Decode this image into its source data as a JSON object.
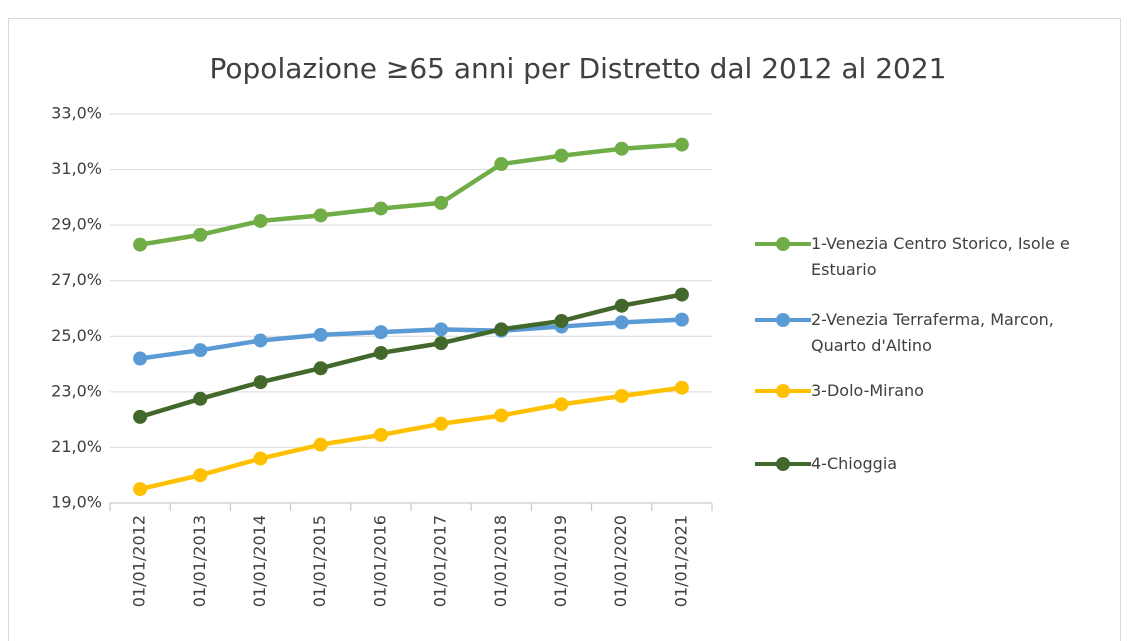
{
  "chart_data": {
    "type": "line",
    "title": "Popolazione ≥65 anni per Distretto dal 2012 al 2021",
    "categories": [
      "01/01/2012",
      "01/01/2013",
      "01/01/2014",
      "01/01/2015",
      "01/01/2016",
      "01/01/2017",
      "01/01/2018",
      "01/01/2019",
      "01/01/2020",
      "01/01/2021"
    ],
    "series": [
      {
        "name": "1-Venezia Centro Storico, Isole e Estuario",
        "color": "#70ad47",
        "values": [
          28.3,
          28.65,
          29.15,
          29.35,
          29.6,
          29.8,
          31.2,
          31.5,
          31.75,
          31.9
        ]
      },
      {
        "name": "2-Venezia Terraferma, Marcon, Quarto d'Altino",
        "color": "#5b9bd5",
        "values": [
          24.2,
          24.5,
          24.85,
          25.05,
          25.15,
          25.25,
          25.2,
          25.35,
          25.5,
          25.6
        ]
      },
      {
        "name": "3-Dolo-Mirano",
        "color": "#ffc000",
        "values": [
          19.5,
          20.0,
          20.6,
          21.1,
          21.45,
          21.85,
          22.15,
          22.55,
          22.85,
          23.15
        ]
      },
      {
        "name": "4-Chioggia",
        "color": "#43682b",
        "values": [
          22.1,
          22.75,
          23.35,
          23.85,
          24.4,
          24.75,
          25.25,
          25.55,
          26.1,
          26.5
        ]
      }
    ],
    "ylim": [
      19,
      33
    ],
    "yticks": [
      {
        "value": 19,
        "label": "19,0%"
      },
      {
        "value": 21,
        "label": "21,0%"
      },
      {
        "value": 23,
        "label": "23,0%"
      },
      {
        "value": 25,
        "label": "25,0%"
      },
      {
        "value": 27,
        "label": "27,0%"
      },
      {
        "value": 29,
        "label": "29,0%"
      },
      {
        "value": 31,
        "label": "31,0%"
      },
      {
        "value": 33,
        "label": "33,0%"
      }
    ],
    "grid": true,
    "legend": "right"
  }
}
